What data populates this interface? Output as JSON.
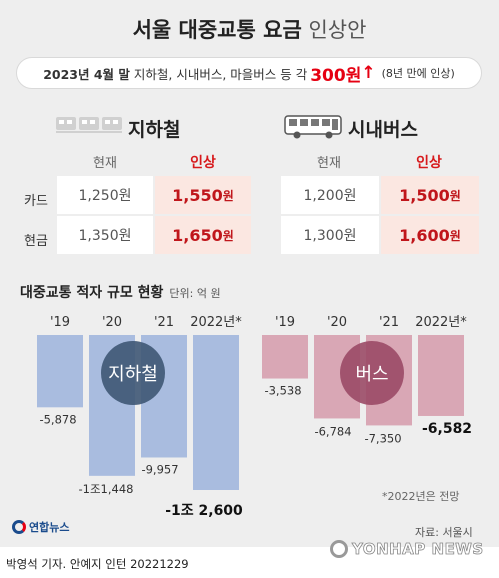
{
  "title": {
    "bold": "서울 대중교통 요금",
    "light": "인상안"
  },
  "banner": {
    "date": "2023년 4월 말",
    "items": "지하철, 시내버스, 마을버스 등 각",
    "amount": "300원",
    "arrow": "↑",
    "note": "(8년 만에 인상)"
  },
  "fare": {
    "subway": {
      "title": "지하철",
      "col_current": "현재",
      "col_raise": "인상",
      "rows": [
        {
          "label": "카드",
          "current": "1,250원",
          "raise_num": "1,550",
          "raise_unit": "원"
        },
        {
          "label": "현금",
          "current": "1,350원",
          "raise_num": "1,650",
          "raise_unit": "원"
        }
      ]
    },
    "bus": {
      "title": "시내버스",
      "col_current": "현재",
      "col_raise": "인상",
      "rows": [
        {
          "current": "1,200원",
          "raise_num": "1,500",
          "raise_unit": "원"
        },
        {
          "current": "1,300원",
          "raise_num": "1,600",
          "raise_unit": "원"
        }
      ]
    }
  },
  "deficit": {
    "title": "대중교통 적자 규모 현황",
    "unit": "단위: 억 원",
    "footnote": "*2022년은 전망"
  },
  "chart_data": [
    {
      "type": "bar",
      "name": "지하철",
      "categories": [
        "'19",
        "'20",
        "'21",
        "2022년*"
      ],
      "values": [
        -5878,
        -11448,
        -9957,
        -12600
      ],
      "value_labels": [
        "-5,878",
        "-1조1,448",
        "-9,957",
        "-1조 2,600"
      ],
      "color": "#a9bcdf",
      "ylim": [
        -13000,
        0
      ]
    },
    {
      "type": "bar",
      "name": "버스",
      "categories": [
        "'19",
        "'20",
        "'21",
        "2022년*"
      ],
      "values": [
        -3538,
        -6784,
        -7350,
        -6582
      ],
      "value_labels": [
        "-3,538",
        "-6,784",
        "-7,350",
        "-6,582"
      ],
      "color": "#d9a7b5",
      "ylim": [
        -13000,
        0
      ]
    }
  ],
  "source": "자료: 서울시",
  "logo": "연합뉴스",
  "credit": "박영석 기자. 안예지 인턴  20221229",
  "watermark": "YONHAP NEWS",
  "colors": {
    "subway_bar": "#a9bcdf",
    "bus_bar": "#d9a7b5",
    "subway_circle": "#3e5774",
    "bus_circle": "#9a4a66",
    "accent_red": "#d7191c",
    "raise_bg": "#fbe7e1"
  }
}
